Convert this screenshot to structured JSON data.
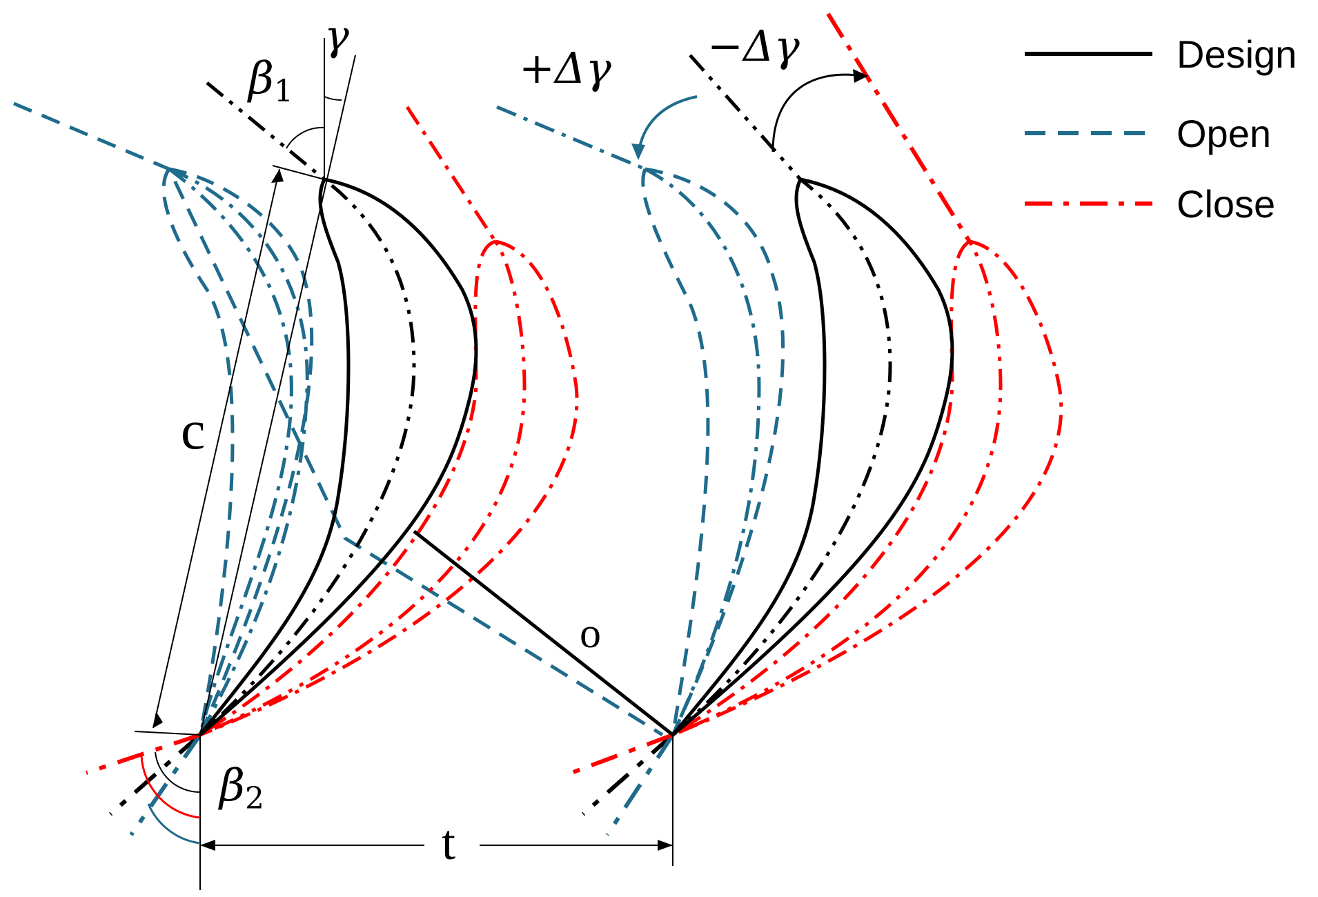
{
  "legend": {
    "items": [
      {
        "label": "Design",
        "color": "#000000",
        "style": "solid"
      },
      {
        "label": "Open",
        "color": "#1f6b8c",
        "style": "dashed"
      },
      {
        "label": "Close",
        "color": "#ff0000",
        "style": "dash-dot"
      }
    ]
  },
  "labels": {
    "beta1": "β",
    "beta1_sub": "1",
    "gamma": "γ",
    "plus_dgamma": "+Δγ",
    "minus_dgamma": "−Δγ",
    "chord": "c",
    "throat": "o",
    "beta2": "β",
    "beta2_sub": "2",
    "pitch": "t"
  },
  "colors": {
    "design": "#000000",
    "open": "#1f6b8c",
    "close": "#ff0000"
  }
}
